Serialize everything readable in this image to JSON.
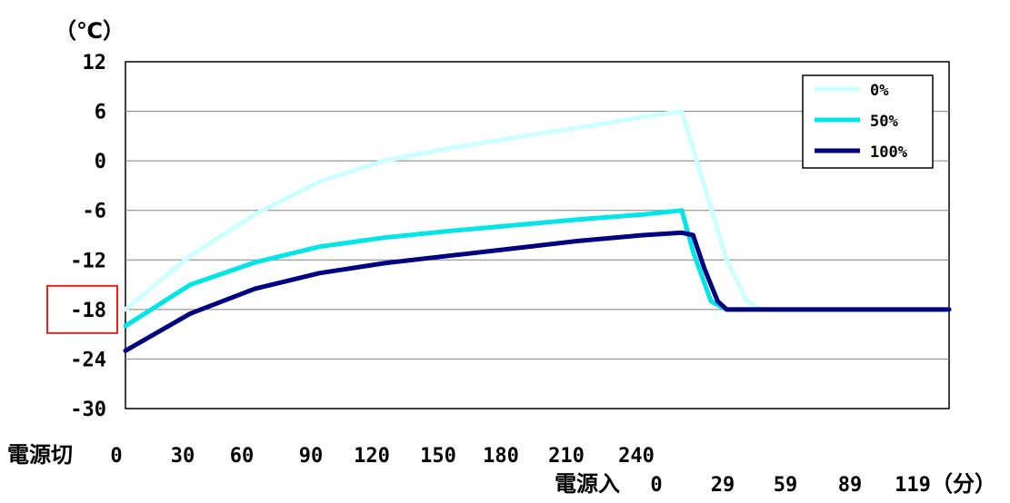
{
  "chart_data": {
    "type": "line",
    "unit_label": "（℃）",
    "ylim": [
      -30,
      12
    ],
    "yticks": [
      "12",
      "6",
      "0",
      "-6",
      "-12",
      "-18",
      "-24",
      "-30"
    ],
    "highlighted_ytick": "-18",
    "grid": true,
    "legend_position": "top-right",
    "x_axis_off": {
      "label": "電源切",
      "ticks": [
        "0",
        "30",
        "60",
        "90",
        "120",
        "150",
        "180",
        "210",
        "240"
      ],
      "range": [
        0,
        258
      ]
    },
    "x_axis_on": {
      "label": "電源入",
      "ticks": [
        "0",
        "29",
        "59",
        "89",
        "119"
      ],
      "unit": "（分）",
      "range": [
        0,
        119
      ]
    },
    "series": [
      {
        "name": "0%",
        "color": "#ccffff",
        "off_phase": {
          "x": [
            0,
            30,
            60,
            90,
            120,
            150,
            180,
            210,
            240,
            258
          ],
          "y": [
            -18,
            -11.5,
            -6.5,
            -2.5,
            0,
            1.5,
            2.8,
            4.0,
            5.3,
            6.0
          ]
        },
        "on_phase": {
          "x": [
            0,
            10,
            20,
            29,
            35,
            119
          ],
          "y": [
            6.0,
            -3,
            -12,
            -17,
            -18,
            -18
          ]
        }
      },
      {
        "name": "50%",
        "color": "#00e5e5",
        "off_phase": {
          "x": [
            0,
            30,
            60,
            90,
            120,
            150,
            180,
            210,
            240,
            258
          ],
          "y": [
            -20,
            -15,
            -12.3,
            -10.4,
            -9.3,
            -8.5,
            -7.8,
            -7.1,
            -6.5,
            -6.0
          ]
        },
        "on_phase": {
          "x": [
            0,
            5,
            13,
            20,
            25,
            119
          ],
          "y": [
            -6.0,
            -11,
            -17,
            -18,
            -18,
            -18
          ]
        }
      },
      {
        "name": "100%",
        "color": "#000080",
        "off_phase": {
          "x": [
            0,
            30,
            60,
            90,
            120,
            150,
            180,
            210,
            240,
            258
          ],
          "y": [
            -23,
            -18.5,
            -15.5,
            -13.6,
            -12.4,
            -11.5,
            -10.6,
            -9.7,
            -9.0,
            -8.7
          ]
        },
        "on_phase": {
          "x": [
            0,
            5,
            10,
            16,
            20,
            25,
            119
          ],
          "y": [
            -8.7,
            -9,
            -13,
            -17,
            -18,
            -18,
            -18
          ]
        }
      }
    ]
  }
}
